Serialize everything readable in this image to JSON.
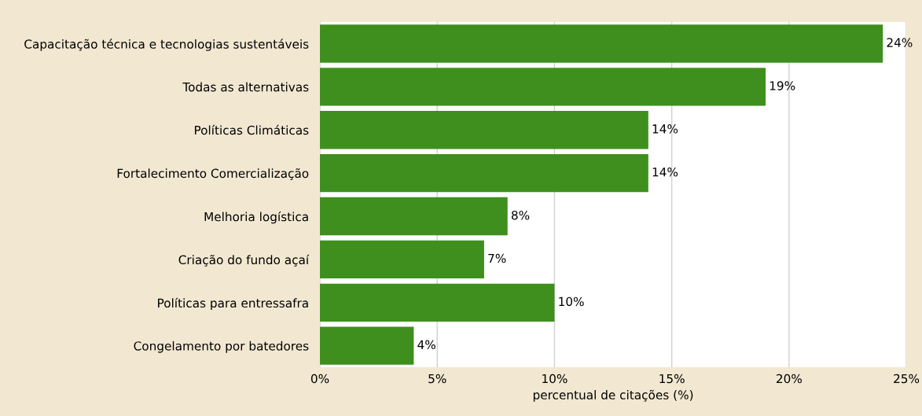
{
  "chart_data": {
    "type": "bar",
    "orientation": "horizontal",
    "xlabel": "percentual de citações (%)",
    "categories": [
      "Capacitação técnica e tecnologias sustentáveis",
      "Todas as alternativas",
      "Políticas Climáticas",
      "Fortalecimento Comercialização",
      "Melhoria logística",
      "Criação do fundo açaí",
      "Políticas para entressafra",
      "Congelamento por batedores"
    ],
    "values": [
      24,
      19,
      14,
      14,
      8,
      7,
      10,
      4
    ],
    "value_labels": [
      "24%",
      "19%",
      "14%",
      "14%",
      "8%",
      "7%",
      "10%",
      "4%"
    ],
    "color": "#3f8f1f",
    "xlim": [
      0,
      25
    ],
    "xticks": [
      {
        "value": 0,
        "label": "0%"
      },
      {
        "value": 5,
        "label": "5%"
      },
      {
        "value": 10,
        "label": "10%"
      },
      {
        "value": 15,
        "label": "15%"
      },
      {
        "value": 20,
        "label": "20%"
      },
      {
        "value": 25,
        "label": "25%"
      }
    ],
    "grid": "x",
    "legend": false
  }
}
